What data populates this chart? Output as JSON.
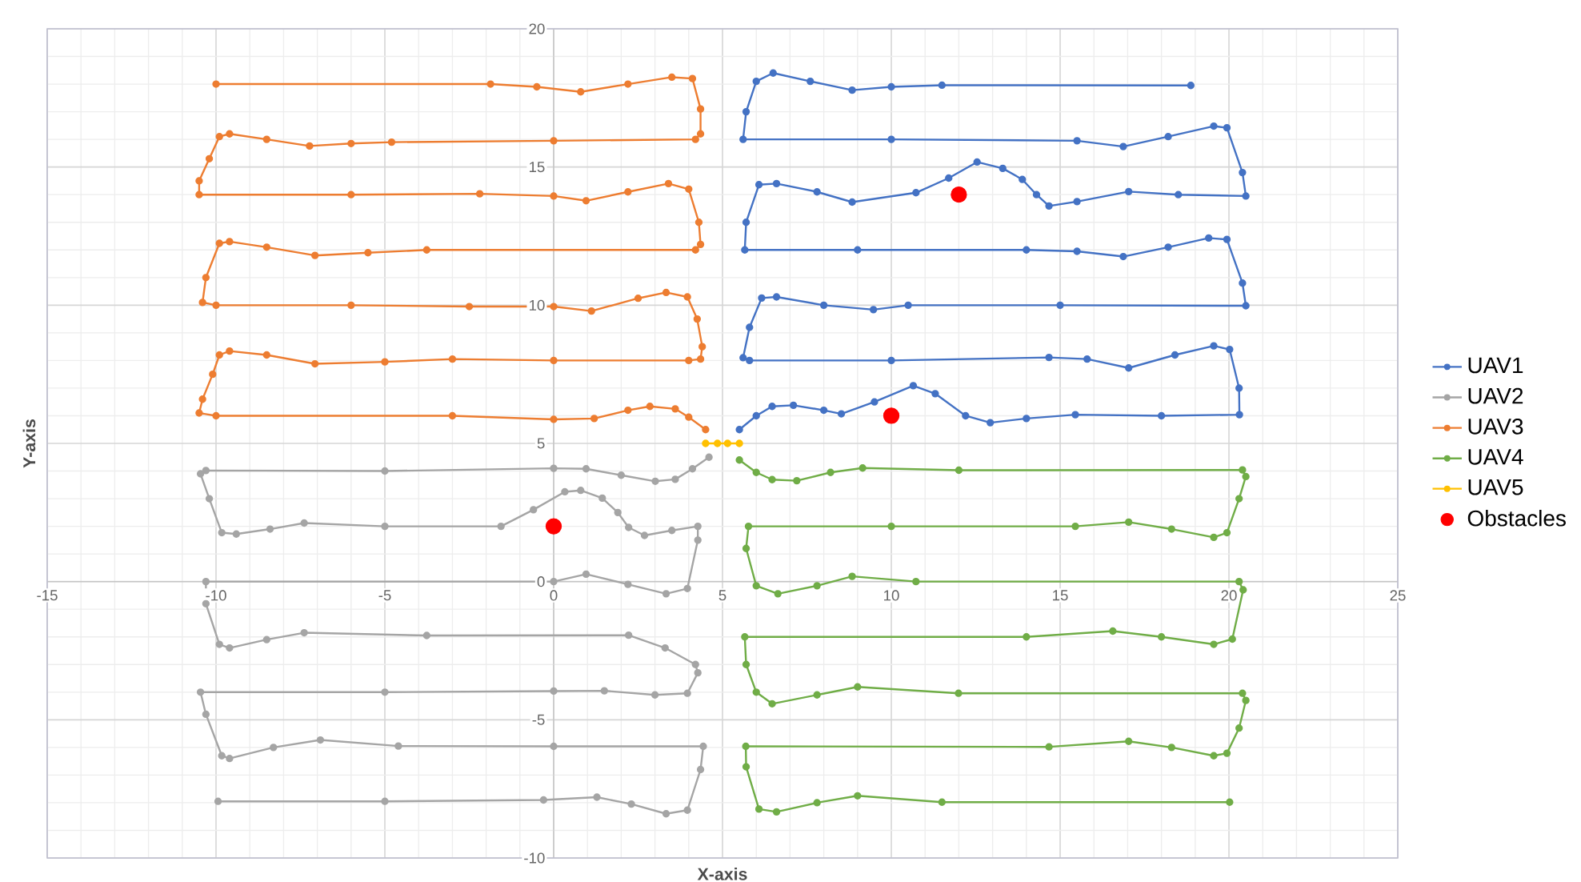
{
  "chart_data": {
    "type": "line",
    "xlabel": "X-axis",
    "ylabel": "Y-axis",
    "xlim": [
      -15,
      25
    ],
    "ylim": [
      -10,
      20
    ],
    "xticks": [
      -15,
      -10,
      -5,
      0,
      5,
      10,
      15,
      20,
      25
    ],
    "yticks": [
      -10,
      -5,
      0,
      5,
      10,
      15,
      20
    ],
    "grid": true,
    "legend": "right",
    "marker": "circle",
    "line_style": "solid",
    "series": [
      {
        "name": "UAV1",
        "color": "#4472c4",
        "x": [
          5.5,
          6.0,
          6.47,
          7.1,
          8.0,
          8.52,
          9.5,
          10.65,
          11.3,
          12.2,
          12.93,
          14,
          15.45,
          18,
          20.31,
          20.3,
          20.02,
          19.55,
          18.4,
          17.03,
          15.8,
          14.67,
          10,
          5.8,
          5.61,
          5.8,
          6.16,
          6.6,
          8,
          9.47,
          10.5,
          15,
          20.5,
          20.4,
          19.94,
          19.4,
          18.2,
          16.87,
          15.5,
          14,
          9,
          5.66,
          5.7,
          6.08,
          6.6,
          7.8,
          8.84,
          10.73,
          11.7,
          12.54,
          13.3,
          13.88,
          14.3,
          14.67,
          15.5,
          17.03,
          18.5,
          20.5,
          20.4,
          19.94,
          19.55,
          18.2,
          16.87,
          15.5,
          10,
          5.61,
          5.7,
          6.0,
          6.5,
          7.6,
          8.84,
          10,
          11.5,
          18.87
        ],
        "values": [
          5.5,
          6.0,
          6.34,
          6.38,
          6.2,
          6.07,
          6.5,
          7.09,
          6.8,
          6.0,
          5.75,
          5.9,
          6.04,
          6.0,
          6.04,
          7.0,
          8.4,
          8.53,
          8.2,
          7.73,
          8.05,
          8.11,
          8.0,
          8.0,
          8.1,
          9.2,
          10.26,
          10.3,
          10.0,
          9.84,
          10.0,
          10.0,
          9.98,
          10.8,
          12.38,
          12.43,
          12.1,
          11.76,
          11.95,
          12.0,
          12.0,
          12.0,
          13.0,
          14.36,
          14.4,
          14.1,
          13.73,
          14.07,
          14.6,
          15.18,
          14.95,
          14.55,
          14.0,
          13.59,
          13.75,
          14.11,
          14.0,
          13.95,
          14.8,
          16.42,
          16.48,
          16.1,
          15.74,
          15.95,
          16.0,
          16.0,
          17.0,
          18.1,
          18.4,
          18.1,
          17.78,
          17.9,
          17.96,
          17.95
        ]
      },
      {
        "name": "UAV2",
        "color": "#a5a5a5",
        "x": [
          4.6,
          4.11,
          3.6,
          3.01,
          2,
          0.96,
          0,
          -5,
          -10.3,
          -10.46,
          -10.2,
          -9.83,
          -9.4,
          -8.4,
          -7.39,
          -5,
          -1.56,
          -0.6,
          0.33,
          0.8,
          1.44,
          1.9,
          2.22,
          2.69,
          3.5,
          4.27,
          4.27,
          3.96,
          3.33,
          2.2,
          0.96,
          0,
          -10.3,
          -10.3,
          -9.9,
          -9.6,
          -8.5,
          -7.39,
          -3.76,
          2.22,
          3.3,
          4.2,
          4.27,
          3.96,
          3.0,
          1.5,
          0,
          -5,
          -10.46,
          -10.3,
          -9.83,
          -9.6,
          -8.3,
          -6.91,
          -4.6,
          0,
          4.43,
          4.35,
          3.96,
          3.33,
          2.3,
          1.28,
          -0.3,
          -5,
          -9.94
        ],
        "values": [
          4.5,
          4.08,
          3.7,
          3.63,
          3.85,
          4.08,
          4.1,
          4.0,
          4.02,
          3.9,
          3.0,
          1.77,
          1.72,
          1.9,
          2.12,
          2.0,
          2.0,
          2.6,
          3.25,
          3.3,
          3.02,
          2.5,
          1.96,
          1.67,
          1.85,
          2.0,
          1.5,
          -0.25,
          -0.44,
          -0.1,
          0.27,
          0,
          0.0,
          -0.8,
          -2.27,
          -2.4,
          -2.1,
          -1.85,
          -1.95,
          -1.94,
          -2.4,
          -3.0,
          -3.3,
          -4.04,
          -4.1,
          -3.95,
          -3.96,
          -4.0,
          -4.0,
          -4.8,
          -6.3,
          -6.4,
          -6.0,
          -5.73,
          -5.95,
          -5.96,
          -5.96,
          -6.8,
          -8.27,
          -8.4,
          -8.05,
          -7.8,
          -7.9,
          -7.95,
          -7.95
        ]
      },
      {
        "name": "UAV3",
        "color": "#ed7d31",
        "x": [
          4.5,
          4,
          3.6,
          2.85,
          2.2,
          1.2,
          0,
          -3,
          -10,
          -10.5,
          -10.4,
          -10.1,
          -9.9,
          -9.6,
          -8.5,
          -7.07,
          -5,
          -3,
          0,
          4,
          4.35,
          4.4,
          4.25,
          3.96,
          3.33,
          2.5,
          1.12,
          0,
          -2.5,
          -6,
          -10,
          -10.4,
          -10.3,
          -9.9,
          -9.6,
          -8.5,
          -7.07,
          -5.5,
          -3.76,
          4.2,
          4.35,
          4.3,
          4.0,
          3.4,
          2.2,
          0.96,
          0,
          -2.19,
          -6,
          -10.5,
          -10.5,
          -10.2,
          -9.9,
          -9.6,
          -8.5,
          -7.23,
          -6,
          -4.8,
          0,
          4.2,
          4.35,
          4.35,
          4.11,
          3.5,
          2.2,
          0.8,
          -0.5,
          -1.87,
          -10
        ],
        "values": [
          5.5,
          5.95,
          6.25,
          6.34,
          6.2,
          5.9,
          5.87,
          6.0,
          6.0,
          6.1,
          6.6,
          7.5,
          8.2,
          8.34,
          8.2,
          7.88,
          7.95,
          8.05,
          8.0,
          8.0,
          8.05,
          8.5,
          9.5,
          10.3,
          10.46,
          10.25,
          9.79,
          9.95,
          9.95,
          10.0,
          10.0,
          10.1,
          11,
          12.24,
          12.3,
          12.1,
          11.8,
          11.9,
          12.0,
          12.0,
          12.2,
          13.0,
          14.2,
          14.4,
          14.1,
          13.78,
          13.95,
          14.03,
          14.0,
          14.0,
          14.5,
          15.3,
          16.1,
          16.2,
          16.0,
          15.76,
          15.85,
          15.9,
          15.95,
          16.0,
          16.2,
          17.1,
          18.2,
          18.25,
          18.0,
          17.72,
          17.9,
          18.0,
          18.0
        ]
      },
      {
        "name": "UAV4",
        "color": "#70ad47",
        "x": [
          5.5,
          6.0,
          6.47,
          7.2,
          8.2,
          9.15,
          12,
          20.4,
          20.5,
          20.3,
          19.94,
          19.55,
          18.3,
          17.03,
          15.45,
          10,
          5.77,
          5.7,
          6.0,
          6.64,
          7.8,
          8.84,
          10.73,
          20.3,
          20.42,
          20.1,
          19.55,
          18,
          16.56,
          14,
          5.66,
          5.7,
          6.0,
          6.47,
          7.8,
          9.0,
          11.99,
          20.4,
          20.5,
          20.3,
          19.94,
          19.55,
          18.3,
          17.03,
          14.67,
          5.69,
          5.7,
          6.08,
          6.6,
          7.8,
          9.0,
          11.5,
          20.02
        ],
        "values": [
          4.4,
          3.95,
          3.69,
          3.65,
          3.95,
          4.11,
          4.03,
          4.04,
          3.8,
          3.0,
          1.77,
          1.6,
          1.9,
          2.15,
          2.0,
          2.0,
          2.0,
          1.2,
          -0.15,
          -0.44,
          -0.15,
          0.19,
          0.0,
          0.0,
          -0.3,
          -2.08,
          -2.27,
          -2.0,
          -1.79,
          -2.0,
          -2.0,
          -3.0,
          -4.0,
          -4.42,
          -4.1,
          -3.81,
          -4.04,
          -4.04,
          -4.3,
          -5.3,
          -6.21,
          -6.3,
          -6.0,
          -5.78,
          -5.98,
          -5.96,
          -6.7,
          -8.23,
          -8.33,
          -8.0,
          -7.75,
          -7.98,
          -7.98
        ]
      },
      {
        "name": "UAV5",
        "color": "#ffc000",
        "x": [
          4.5,
          4.85,
          5.15,
          5.5
        ],
        "values": [
          5,
          5,
          5,
          5
        ]
      },
      {
        "name": "Obstacles",
        "type": "scatter",
        "color": "#ff0000",
        "x": [
          0,
          10,
          12
        ],
        "values": [
          2,
          6,
          14
        ]
      }
    ]
  }
}
